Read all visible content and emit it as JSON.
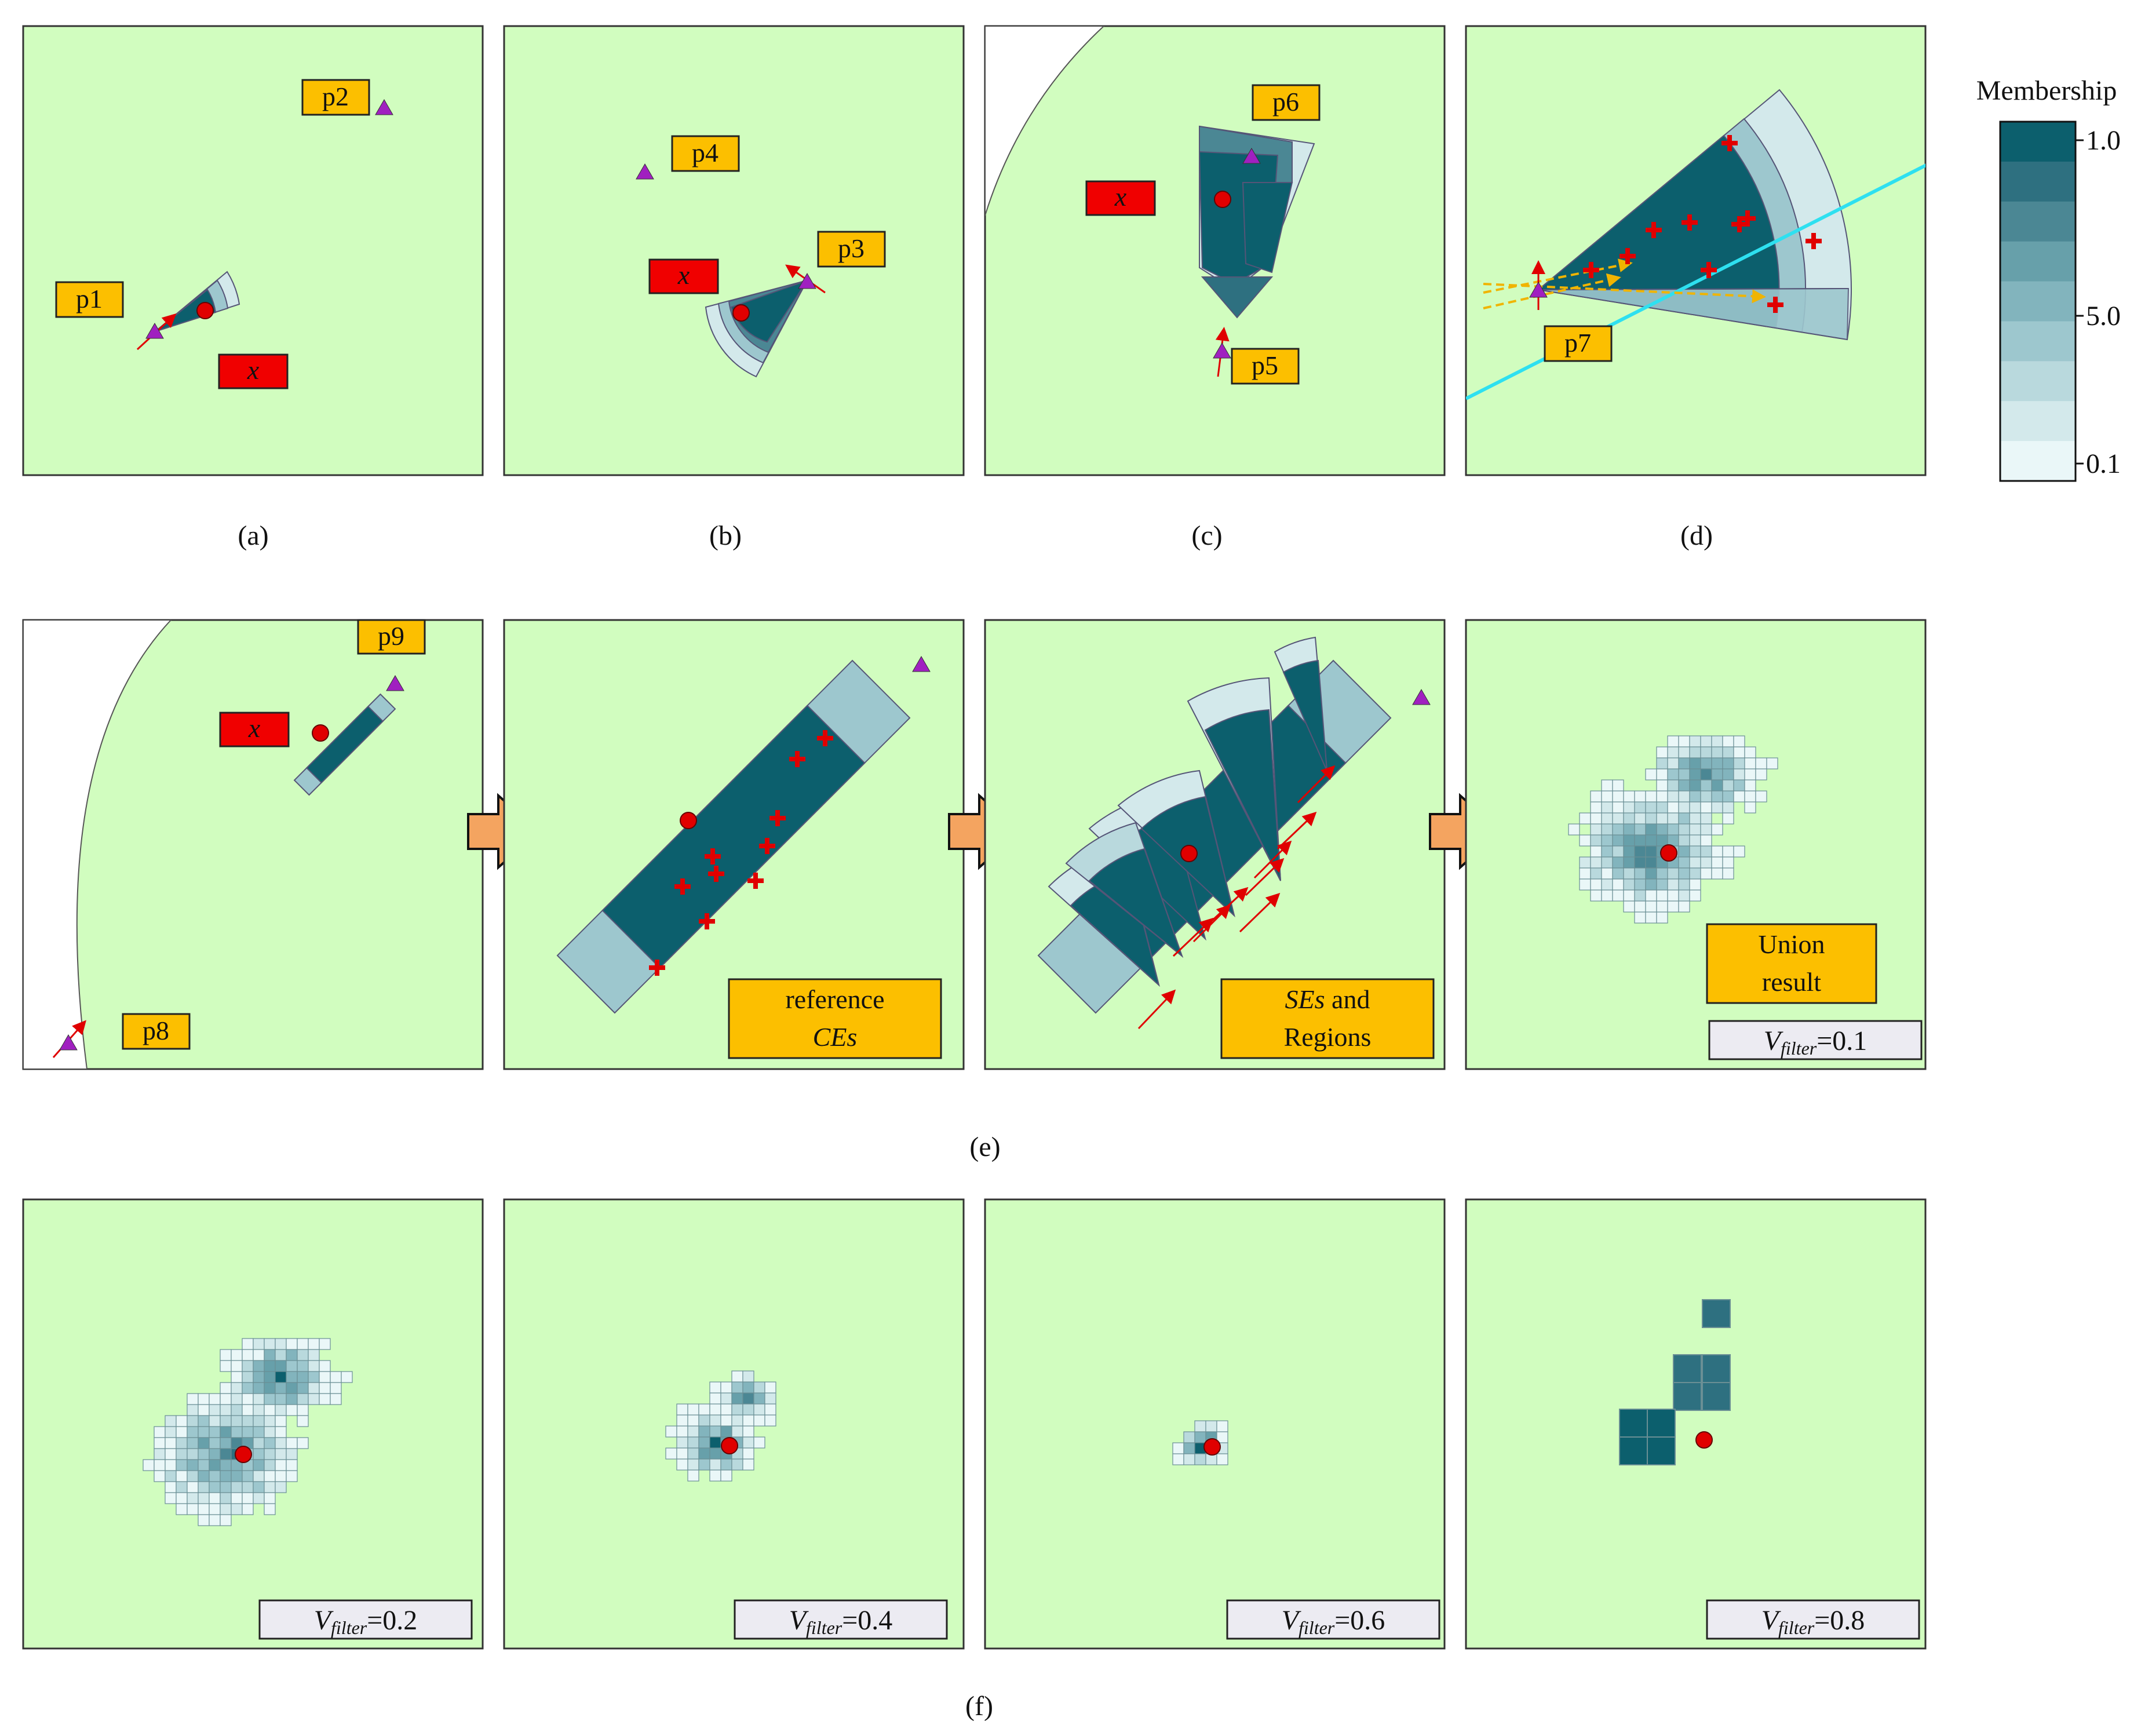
{
  "legend": {
    "title": "Membership",
    "ticks": [
      "1.0",
      "5.0",
      "0.1"
    ],
    "colors": [
      "#0c5f6d",
      "#2e7080",
      "#4b8794",
      "#67a0aa",
      "#82b4bd",
      "#9dc7ce",
      "#b9d9dd",
      "#d3e9eb",
      "#eaf7f8"
    ]
  },
  "palette": {
    "panel_bg": "#d1fdbf",
    "label_box": "#fcbf00",
    "x_box": "#f00000",
    "point": "#e00000",
    "triangle": "#a020c0",
    "arrow": "#f4a460",
    "filter_box": "#ecebf2"
  },
  "point_labels": [
    "p1",
    "p2",
    "p3",
    "p4",
    "p5",
    "p6",
    "p7",
    "p8",
    "p9"
  ],
  "x_label": "x",
  "captions": [
    "(a)",
    "(b)",
    "(c)",
    "(d)",
    "(e)",
    "(f)"
  ],
  "boxes": {
    "reference": [
      "reference",
      "CEs"
    ],
    "ses": [
      "SEs",
      " and",
      "Regions"
    ],
    "union": [
      "Union",
      "result"
    ]
  },
  "filters": [
    {
      "label": "V",
      "sub": "filter",
      "value": "=0.1"
    },
    {
      "label": "V",
      "sub": "filter",
      "value": "=0.2"
    },
    {
      "label": "V",
      "sub": "filter",
      "value": "=0.4"
    },
    {
      "label": "V",
      "sub": "filter",
      "value": "=0.6"
    },
    {
      "label": "V",
      "sub": "filter",
      "value": "=0.8"
    }
  ]
}
